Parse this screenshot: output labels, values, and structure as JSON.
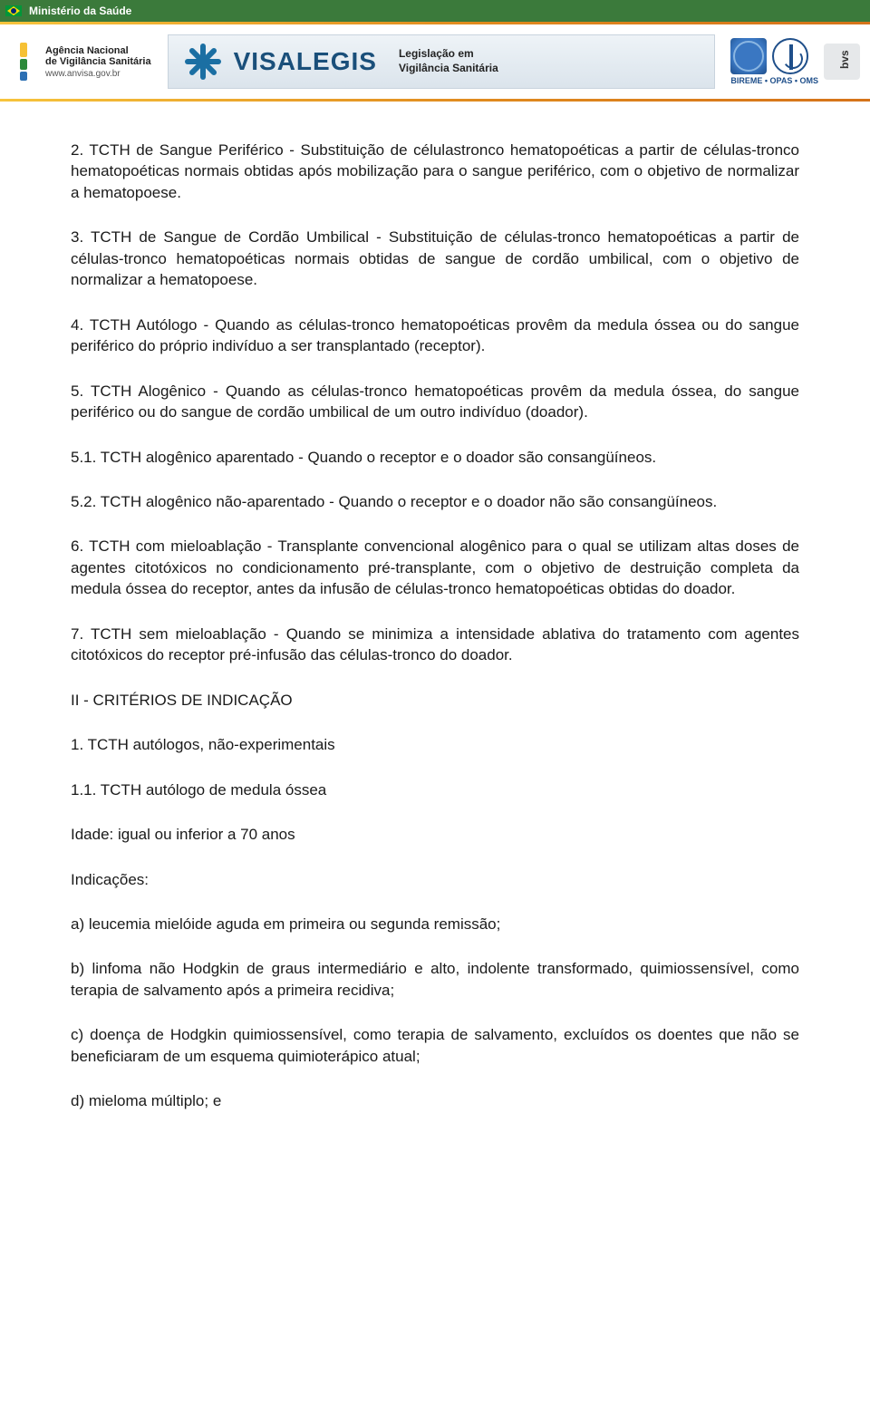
{
  "header": {
    "ministry": "Ministério da Saúde",
    "anvisa_line1": "Agência Nacional",
    "anvisa_line2": "de Vigilância Sanitária",
    "anvisa_url": "www.anvisa.gov.br",
    "visalegis": "VISALEGIS",
    "visalegis_tag_l1": "Legislação em",
    "visalegis_tag_l2": "Vigilância Sanitária",
    "bireme": "BIREME • OPAS • OMS",
    "bvs": "bvs"
  },
  "colors": {
    "topbar": "#3b7a3b",
    "text": "#1a1a1a",
    "link_blue": "#1a4f7a",
    "gradient_a": "#f7c43c",
    "gradient_b": "#d5731a"
  },
  "body": {
    "p1": "2. TCTH de Sangue Periférico - Substituição de célulastronco hematopoéticas a partir de células-tronco hematopoéticas normais obtidas após mobilização para o sangue periférico, com o objetivo de normalizar a hematopoese.",
    "p2": "3. TCTH de Sangue de Cordão Umbilical - Substituição de células-tronco hematopoéticas a partir de células-tronco hematopoéticas normais obtidas de sangue de cordão umbilical, com o objetivo de normalizar a hematopoese.",
    "p3": "4. TCTH Autólogo - Quando as células-tronco hematopoéticas provêm da medula óssea ou do sangue periférico do próprio indivíduo a ser transplantado (receptor).",
    "p4": "5. TCTH Alogênico - Quando as células-tronco hematopoéticas provêm da medula óssea, do sangue periférico ou do sangue de cordão umbilical de um outro indivíduo (doador).",
    "p5": "5.1. TCTH alogênico aparentado - Quando o receptor e o doador são consangüíneos.",
    "p6": "5.2. TCTH alogênico não-aparentado - Quando o receptor e o doador não são consangüíneos.",
    "p7": "6. TCTH com mieloablação - Transplante convencional alogênico para o qual se utilizam altas doses de agentes citotóxicos no condicionamento pré-transplante, com o objetivo de destruição completa da medula óssea do receptor, antes da infusão de células-tronco hematopoéticas obtidas do doador.",
    "p8": "7. TCTH sem mieloablação - Quando se minimiza a intensidade ablativa do tratamento com agentes citotóxicos do receptor pré-infusão das células-tronco do doador.",
    "p9": "II - CRITÉRIOS DE INDICAÇÃO",
    "p10": "1. TCTH autólogos, não-experimentais",
    "p11": "1.1. TCTH autólogo de medula óssea",
    "p12": "Idade: igual ou inferior a 70 anos",
    "p13": "Indicações:",
    "p14": "a) leucemia mielóide aguda em primeira ou segunda remissão;",
    "p15": "b) linfoma não Hodgkin de graus intermediário e alto, indolente transformado, quimiossensível, como terapia de salvamento após a primeira recidiva;",
    "p16": "c) doença de Hodgkin quimiossensível, como terapia de salvamento, excluídos os doentes que não se beneficiaram de um esquema quimioterápico atual;",
    "p17": "d) mieloma múltiplo; e"
  }
}
